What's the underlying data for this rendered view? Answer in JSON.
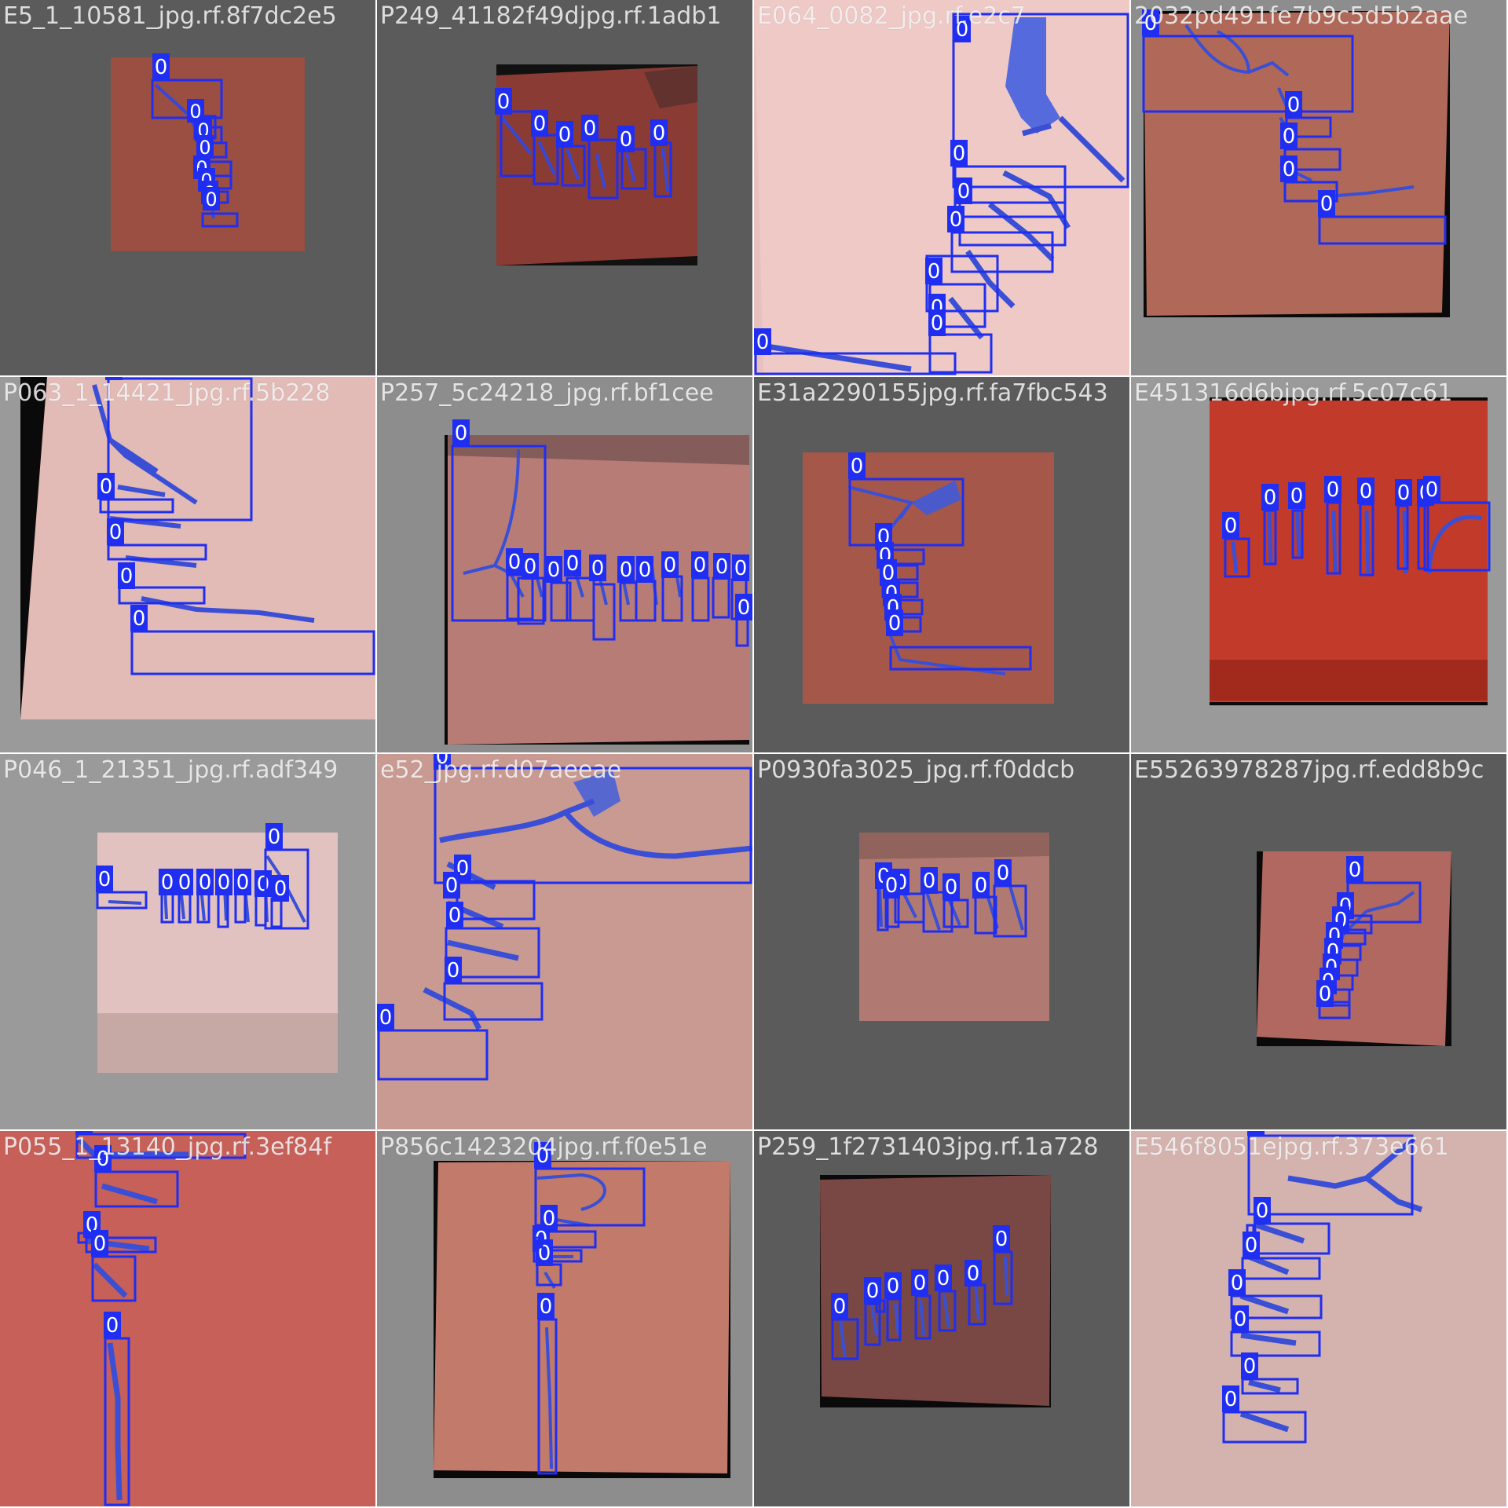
{
  "label_class": "0",
  "palette": {
    "box": "#1f2ef0",
    "box_fill": "#2032e6",
    "label_bg": "#1f2ef0",
    "label_text": "#ffffff",
    "crack": "#3847d8"
  },
  "tiles": [
    {
      "filename": "E5_1_10581_jpg.rf.8f7dc2e5",
      "boxes": 8
    },
    {
      "filename": "P249_41182f49djpg.rf.1adb1",
      "boxes": 6
    },
    {
      "filename": "E064_0082_jpg.rf.e2c7",
      "boxes": 8
    },
    {
      "filename": "2032pd491fe7b9c5d5b2aae",
      "boxes": 5
    },
    {
      "filename": "P063_1_14421_jpg.rf.5b228",
      "boxes": 5
    },
    {
      "filename": "P257_5c24218_jpg.rf.bf1cee",
      "boxes": 13
    },
    {
      "filename": "E31a2290155jpg.rf.fa7fbc543",
      "boxes": 7
    },
    {
      "filename": "E451316d6bjpg.rf.5c07c61",
      "boxes": 8
    },
    {
      "filename": "P046_1_21351_jpg.rf.adf349",
      "boxes": 9
    },
    {
      "filename": "e52_jpg.rf.d07aeeae",
      "boxes": 6
    },
    {
      "filename": "P0930fa3025_jpg.rf.f0ddcb",
      "boxes": 7
    },
    {
      "filename": "E55263978287jpg.rf.edd8b9c",
      "boxes": 8
    },
    {
      "filename": "P055_1_13140_jpg.rf.3ef84f",
      "boxes": 6
    },
    {
      "filename": "P856c1423204jpg.rf.f0e51e",
      "boxes": 6
    },
    {
      "filename": "P259_1f2731403jpg.rf.1a728",
      "boxes": 8
    },
    {
      "filename": "E546f8051ejpg.rf.373e661",
      "boxes": 8
    }
  ]
}
